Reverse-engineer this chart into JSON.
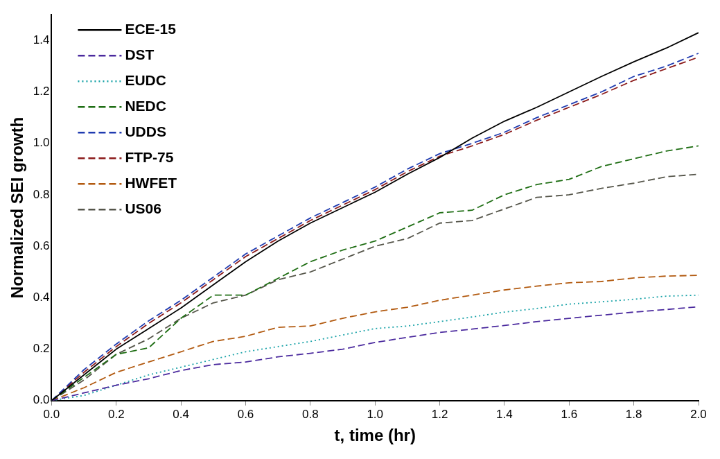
{
  "chart_data": {
    "type": "line",
    "xlabel": "t, time (hr)",
    "ylabel": "Normalized SEI growth",
    "x": [
      0,
      0.1,
      0.2,
      0.3,
      0.4,
      0.5,
      0.6,
      0.7,
      0.8,
      0.9,
      1.0,
      1.1,
      1.2,
      1.3,
      1.4,
      1.5,
      1.6,
      1.7,
      1.8,
      1.9,
      2.0
    ],
    "series": [
      {
        "name": "ECE-15",
        "color": "#000000",
        "line_style": "solid",
        "values": [
          0,
          0.1,
          0.2,
          0.28,
          0.36,
          0.45,
          0.54,
          0.62,
          0.69,
          0.75,
          0.81,
          0.88,
          0.945,
          1.02,
          1.086,
          1.14,
          1.2,
          1.26,
          1.317,
          1.37,
          1.43
        ]
      },
      {
        "name": "DST",
        "color": "#4b2a9e",
        "line_style": "dashed",
        "values": [
          0,
          0.03,
          0.06,
          0.085,
          0.117,
          0.14,
          0.15,
          0.17,
          0.184,
          0.2,
          0.226,
          0.246,
          0.265,
          0.278,
          0.292,
          0.307,
          0.32,
          0.332,
          0.344,
          0.354,
          0.365
        ]
      },
      {
        "name": "EUDC",
        "color": "#1aa3a8",
        "line_style": "dotted",
        "values": [
          0,
          0.02,
          0.06,
          0.1,
          0.13,
          0.16,
          0.19,
          0.21,
          0.23,
          0.255,
          0.28,
          0.29,
          0.307,
          0.325,
          0.344,
          0.358,
          0.375,
          0.384,
          0.394,
          0.406,
          0.41
        ]
      },
      {
        "name": "NEDC",
        "color": "#1f6e14",
        "line_style": "dashed",
        "values": [
          0,
          0.09,
          0.18,
          0.205,
          0.32,
          0.41,
          0.41,
          0.475,
          0.54,
          0.585,
          0.62,
          0.675,
          0.73,
          0.74,
          0.8,
          0.84,
          0.86,
          0.91,
          0.94,
          0.97,
          0.99
        ]
      },
      {
        "name": "UDDS",
        "color": "#1f3bb0",
        "line_style": "dashed",
        "values": [
          0,
          0.12,
          0.22,
          0.31,
          0.39,
          0.48,
          0.57,
          0.64,
          0.71,
          0.77,
          0.83,
          0.9,
          0.96,
          1.0,
          1.043,
          1.1,
          1.15,
          1.2,
          1.26,
          1.3,
          1.35
        ]
      },
      {
        "name": "FTP-75",
        "color": "#8b1a1a",
        "line_style": "dashed",
        "values": [
          0,
          0.11,
          0.21,
          0.3,
          0.38,
          0.47,
          0.56,
          0.63,
          0.7,
          0.76,
          0.82,
          0.89,
          0.95,
          0.99,
          1.035,
          1.09,
          1.14,
          1.19,
          1.245,
          1.29,
          1.335
        ]
      },
      {
        "name": "HWFET",
        "color": "#b25a10",
        "line_style": "dashed",
        "values": [
          0,
          0.05,
          0.11,
          0.15,
          0.19,
          0.23,
          0.25,
          0.285,
          0.29,
          0.32,
          0.345,
          0.363,
          0.39,
          0.41,
          0.43,
          0.445,
          0.458,
          0.463,
          0.477,
          0.484,
          0.487
        ]
      },
      {
        "name": "US06",
        "color": "#55554a",
        "line_style": "dashed",
        "values": [
          0,
          0.08,
          0.18,
          0.24,
          0.32,
          0.38,
          0.41,
          0.47,
          0.5,
          0.55,
          0.6,
          0.63,
          0.69,
          0.7,
          0.745,
          0.79,
          0.8,
          0.825,
          0.845,
          0.87,
          0.88
        ]
      }
    ],
    "xlim": [
      0,
      2
    ],
    "xticks": [
      {
        "value": 0,
        "label": "0.0"
      },
      0.2,
      0.4,
      0.6,
      0.8,
      {
        "value": 1,
        "label": "1.0"
      },
      1.2,
      1.4,
      1.6,
      1.8,
      {
        "value": 2,
        "label": "2.0"
      }
    ],
    "ylim": [
      0,
      1.5
    ],
    "yticks": [
      {
        "value": 0,
        "label": "0.0"
      },
      0.2,
      0.4,
      0.6,
      0.8,
      {
        "value": 1,
        "label": "1.0"
      },
      1.2,
      1.4
    ],
    "legend": "top left",
    "grid": false,
    "marker": "none"
  }
}
